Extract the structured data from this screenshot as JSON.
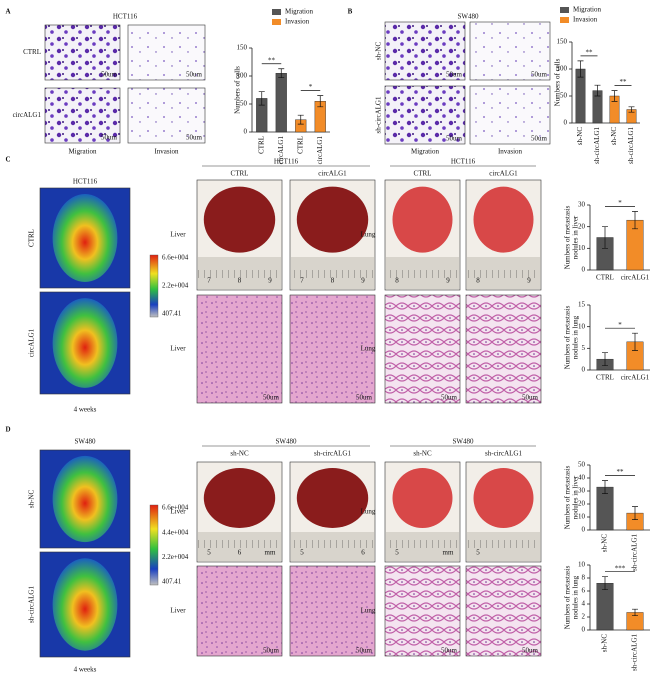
{
  "panels": [
    {
      "label": "A",
      "cell_line": "HCT116",
      "rows": [
        "CTRL",
        "circALG1"
      ],
      "columns": [
        "Migration",
        "Invasion"
      ],
      "scale_bars": [
        "50um",
        "50um",
        "50um",
        "50um"
      ]
    },
    {
      "label": "B",
      "cell_line": "SW480",
      "rows": [
        "sh-NC",
        "sh-circALG1"
      ],
      "columns": [
        "Migration",
        "Invasion"
      ],
      "scale_bars": [
        "50um",
        "50um",
        "50um",
        "50um"
      ]
    },
    {
      "label": "C",
      "imaging": {
        "cell_line": "HCT116",
        "rows": [
          "CTRL",
          "circALG1"
        ],
        "colorbar": [
          "6.6e+004",
          "2.2e+004",
          "407.41"
        ],
        "time": "4 weeks"
      },
      "liver": {
        "cell_line": "HCT116",
        "groups": [
          "CTRL",
          "circALG1"
        ],
        "rows": [
          "Liver",
          "Liver"
        ],
        "rulers": [
          [
            "7",
            "8",
            "9"
          ],
          [
            "7",
            "8",
            "9"
          ]
        ],
        "scale_bars": [
          "50um",
          "50um"
        ]
      },
      "lung": {
        "cell_line": "HCT116",
        "groups": [
          "CTRL",
          "circALG1"
        ],
        "rows": [
          "Lung",
          "Lung"
        ],
        "rulers": [
          [
            "8",
            "9"
          ],
          [
            "8",
            "9"
          ]
        ],
        "scale_bars": [
          "50um",
          "50um"
        ]
      }
    },
    {
      "label": "D",
      "imaging": {
        "cell_line": "SW480",
        "rows": [
          "sh-NC",
          "sh-circALG1"
        ],
        "colorbar": [
          "6.6e+004",
          "4.4e+004",
          "2.2e+004",
          "407.41"
        ],
        "time": "4 weeks"
      },
      "liver": {
        "cell_line": "SW480",
        "groups": [
          "sh-NC",
          "sh-circALG1"
        ],
        "rows": [
          "Liver",
          "Liver"
        ],
        "rulers": [
          [
            "5",
            "6",
            "mm"
          ],
          [
            "5",
            "6"
          ]
        ],
        "scale_bars": [
          "50um",
          "50um"
        ]
      },
      "lung": {
        "cell_line": "SW480",
        "groups": [
          "sh-NC",
          "sh-circALG1"
        ],
        "rows": [
          "Lung",
          "Lung"
        ],
        "rulers": [
          [
            "5",
            "mm"
          ],
          [
            "5"
          ]
        ],
        "scale_bars": [
          "50um",
          "50um"
        ]
      }
    }
  ],
  "chart_data": [
    {
      "type": "bar",
      "y_label": [
        "Numbers of cells"
      ],
      "series": [
        {
          "name": "Migration",
          "color": "#555555"
        },
        {
          "name": "Invasion",
          "color": "#f28c28"
        }
      ],
      "categories": [
        "CTRL",
        "circALG1",
        "CTRL",
        "circALG1"
      ],
      "values": [
        60,
        105,
        22,
        55
      ],
      "errors": [
        12,
        8,
        8,
        10
      ],
      "colors": [
        "#555555",
        "#555555",
        "#f28c28",
        "#f28c28"
      ],
      "ylim": [
        0,
        150
      ],
      "yticks": [
        0,
        50,
        100,
        150
      ],
      "significance": [
        "**",
        "*"
      ]
    },
    {
      "type": "bar",
      "y_label": [
        "Numbers of cells"
      ],
      "series": [
        {
          "name": "Migration",
          "color": "#555555"
        },
        {
          "name": "Invasion",
          "color": "#f28c28"
        }
      ],
      "categories": [
        "sh-NC",
        "sh-circALG1",
        "sh-NC",
        "sh-circALG1"
      ],
      "values": [
        100,
        60,
        50,
        25
      ],
      "errors": [
        15,
        10,
        10,
        5
      ],
      "colors": [
        "#555555",
        "#555555",
        "#f28c28",
        "#f28c28"
      ],
      "ylim": [
        0,
        150
      ],
      "yticks": [
        0,
        50,
        100,
        150
      ],
      "significance": [
        "**",
        "**"
      ]
    },
    {
      "type": "bar",
      "y_label": [
        "Numbers of metastasis",
        "nodules in liver"
      ],
      "categories": [
        "CTRL",
        "circALG1"
      ],
      "values": [
        15,
        23
      ],
      "errors": [
        5,
        4
      ],
      "colors": [
        "#555555",
        "#f28c28"
      ],
      "ylim": [
        0,
        30
      ],
      "yticks": [
        0,
        10,
        20,
        30
      ],
      "significance": [
        "*"
      ]
    },
    {
      "type": "bar",
      "y_label": [
        "Numbers of metastasis",
        "nodules in lung"
      ],
      "categories": [
        "CTRL",
        "circALG1"
      ],
      "values": [
        2.5,
        6.5
      ],
      "errors": [
        1.5,
        2
      ],
      "colors": [
        "#555555",
        "#f28c28"
      ],
      "ylim": [
        0,
        15
      ],
      "yticks": [
        0,
        5,
        10,
        15
      ],
      "significance": [
        "*"
      ]
    },
    {
      "type": "bar",
      "y_label": [
        "Numbers of metastasis",
        "nodules in liver"
      ],
      "categories": [
        "sh-NC",
        "sh-circALG1"
      ],
      "values": [
        33,
        13
      ],
      "errors": [
        5,
        5
      ],
      "colors": [
        "#555555",
        "#f28c28"
      ],
      "ylim": [
        0,
        50
      ],
      "yticks": [
        0,
        10,
        20,
        30,
        40,
        50
      ],
      "significance": [
        "**"
      ]
    },
    {
      "type": "bar",
      "y_label": [
        "Numbers of metastasis",
        "nodules in lung"
      ],
      "categories": [
        "sh-NC",
        "sh-circALG1"
      ],
      "values": [
        7.2,
        2.7
      ],
      "errors": [
        1,
        0.5
      ],
      "colors": [
        "#555555",
        "#f28c28"
      ],
      "ylim": [
        0,
        10
      ],
      "yticks": [
        0,
        2,
        4,
        6,
        8,
        10
      ],
      "significance": [
        "***"
      ]
    }
  ]
}
